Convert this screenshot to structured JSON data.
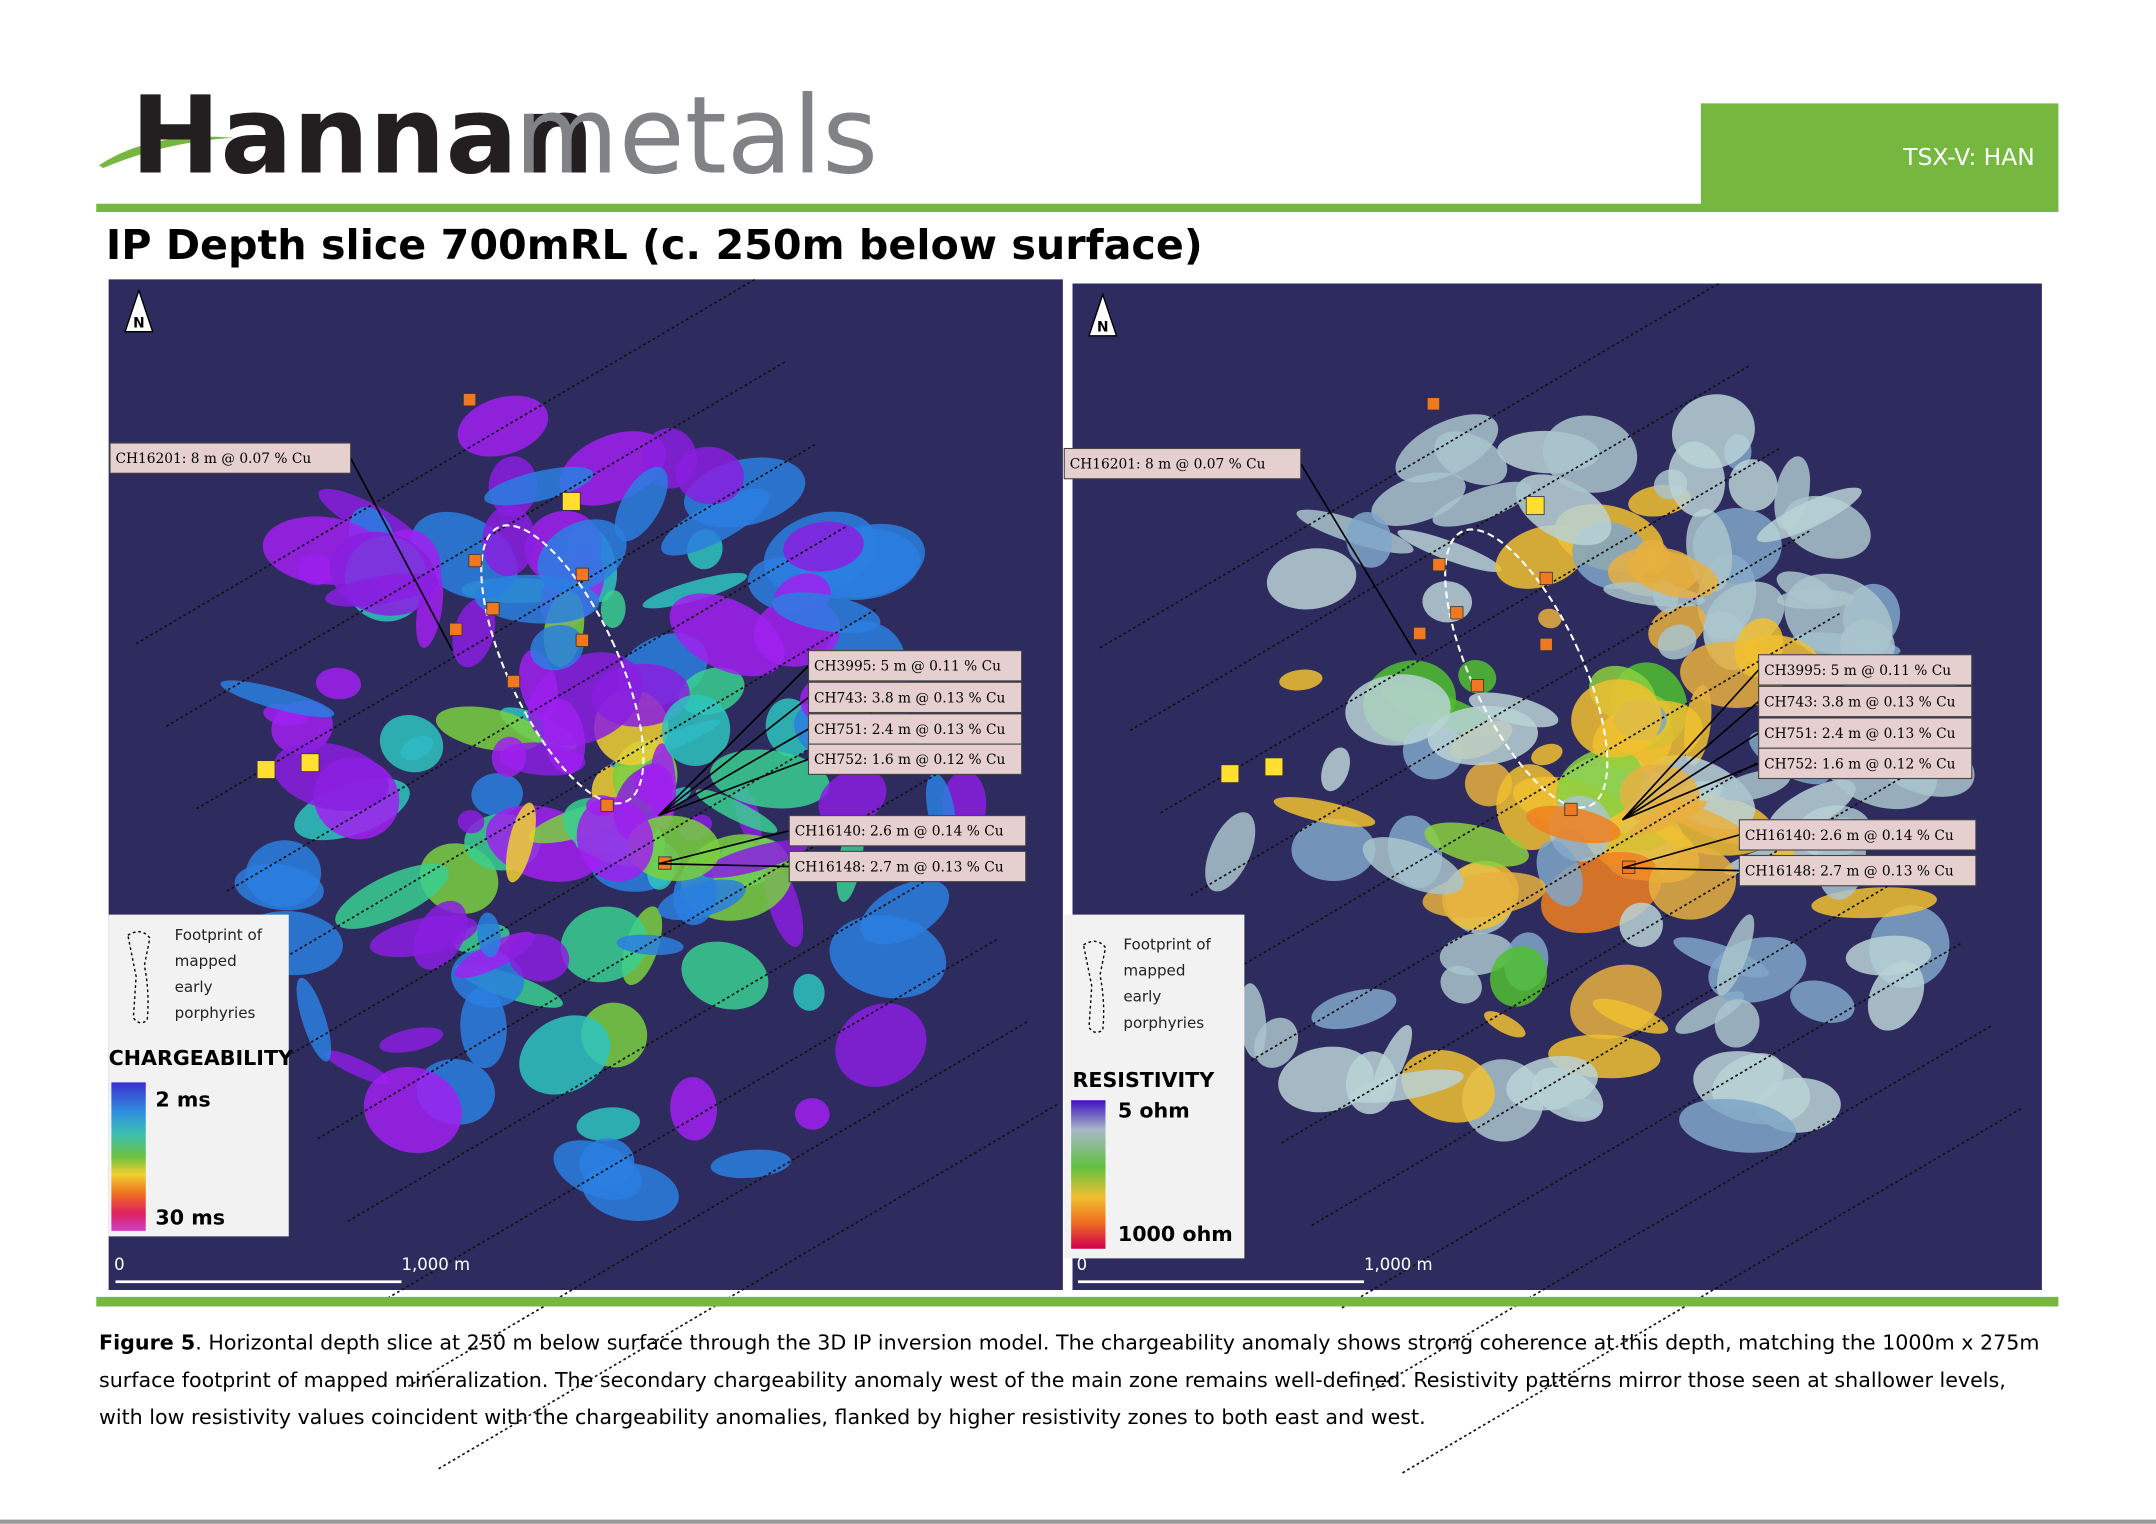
{
  "header": {
    "logo_primary": "Hannan",
    "logo_secondary": "metals",
    "ticker": "TSX-V: HAN"
  },
  "title": "IP Depth slice 700mRL  (c. 250m below surface)",
  "maps": [
    {
      "north": "N",
      "callouts": [
        "CH16201: 8 m @ 0.07 % Cu",
        "CH3995: 5 m @ 0.11 % Cu",
        "CH743: 3.8 m @ 0.13 % Cu",
        "CH751: 2.4 m @ 0.13 % Cu",
        "CH752: 1.6 m @ 0.12 % Cu",
        "CH16140: 2.6 m @ 0.14 % Cu",
        "CH16148: 2.7 m @ 0.13 % Cu"
      ],
      "legend": {
        "footprint": [
          "Footprint of",
          "mapped",
          "early",
          "porphyries"
        ],
        "title": "CHARGEABILITY",
        "min": "2 ms",
        "max": "30 ms"
      },
      "scale": [
        "0",
        "1,000 m"
      ]
    },
    {
      "north": "N",
      "callouts": [
        "CH16201: 8 m @ 0.07 % Cu",
        "CH3995: 5 m @ 0.11 % Cu",
        "CH743: 3.8 m @ 0.13 % Cu",
        "CH751: 2.4 m @ 0.13 % Cu",
        "CH752: 1.6 m @ 0.12 % Cu",
        "CH16140: 2.6 m @ 0.14 % Cu",
        "CH16148: 2.7 m @ 0.13 % Cu"
      ],
      "legend": {
        "footprint": [
          "Footprint of",
          "mapped",
          "early",
          "porphyries"
        ],
        "title": "RESISTIVITY",
        "min": "5 ohm",
        "max": "1000 ohm"
      },
      "scale": [
        "0",
        "1,000 m"
      ]
    }
  ],
  "caption": {
    "label": "Figure 5",
    "lines": [
      ". Horizontal depth slice at 250 m below surface through the 3D IP inversion model. The chargeability anomaly shows strong coherence at this depth, matching the 1000m x 275m",
      "surface footprint of mapped mineralization. The secondary chargeability anomaly west of the main zone remains well-defined. Resistivity patterns mirror those seen at shallower levels,",
      "with low resistivity values coincident with the chargeability anomalies, flanked by higher resistivity zones to both east and west."
    ]
  }
}
